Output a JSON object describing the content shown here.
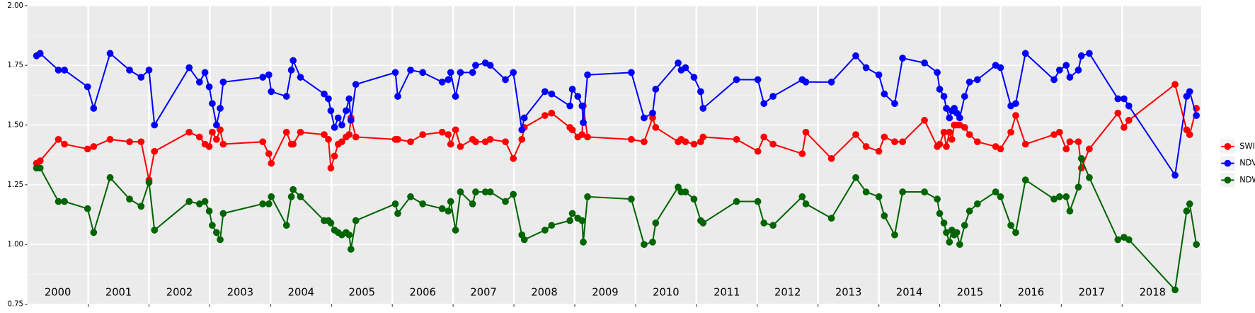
{
  "chart_data": {
    "type": "line",
    "annotations": [
      "2000",
      "2001",
      "2002",
      "2003",
      "2004",
      "2005",
      "2006",
      "2007",
      "2008",
      "2009",
      "2010",
      "2011",
      "2012",
      "2013",
      "2014",
      "2015",
      "2016",
      "2017",
      "2018"
    ],
    "x": [
      2000.15,
      2000.21,
      2000.51,
      2000.61,
      2000.99,
      2001.09,
      2001.36,
      2001.68,
      2001.87,
      2002.0,
      2002.09,
      2002.66,
      2002.83,
      2002.92,
      2002.99,
      2003.04,
      2003.11,
      2003.17,
      2003.22,
      2003.87,
      2003.97,
      2004.01,
      2004.26,
      2004.34,
      2004.37,
      2004.49,
      2004.88,
      2004.95,
      2004.99,
      2005.05,
      2005.11,
      2005.17,
      2005.24,
      2005.29,
      2005.32,
      2005.4,
      2006.05,
      2006.09,
      2006.3,
      2006.5,
      2006.82,
      2006.92,
      2006.96,
      2007.04,
      2007.12,
      2007.32,
      2007.37,
      2007.53,
      2007.61,
      2007.86,
      2007.99,
      2008.13,
      2008.17,
      2008.51,
      2008.62,
      2008.92,
      2008.96,
      2009.05,
      2009.12,
      2009.14,
      2009.21,
      2009.93,
      2010.14,
      2010.28,
      2010.33,
      2010.7,
      2010.75,
      2010.82,
      2010.96,
      2011.07,
      2011.11,
      2011.66,
      2012.01,
      2012.11,
      2012.26,
      2012.74,
      2012.8,
      2013.22,
      2013.62,
      2013.79,
      2014.0,
      2014.09,
      2014.26,
      2014.39,
      2014.75,
      2014.96,
      2015.0,
      2015.07,
      2015.11,
      2015.16,
      2015.2,
      2015.24,
      2015.28,
      2015.33,
      2015.41,
      2015.49,
      2015.62,
      2015.92,
      2016.0,
      2016.17,
      2016.25,
      2016.41,
      2016.88,
      2016.97,
      2017.08,
      2017.14,
      2017.28,
      2017.33,
      2017.46,
      2017.93,
      2018.03,
      2018.11,
      2018.87,
      2019.06,
      2019.11,
      2019.22
    ],
    "series": [
      {
        "name": "SWIR",
        "color": "#ff0000",
        "values": [
          1.34,
          1.35,
          1.44,
          1.42,
          1.4,
          1.41,
          1.44,
          1.43,
          1.43,
          1.27,
          1.39,
          1.47,
          1.45,
          1.42,
          1.41,
          1.47,
          1.44,
          1.48,
          1.42,
          1.43,
          1.38,
          1.34,
          1.47,
          1.42,
          1.42,
          1.47,
          1.46,
          1.44,
          1.32,
          1.37,
          1.42,
          1.43,
          1.45,
          1.46,
          1.53,
          1.45,
          1.44,
          1.44,
          1.43,
          1.46,
          1.47,
          1.46,
          1.42,
          1.48,
          1.41,
          1.44,
          1.43,
          1.43,
          1.44,
          1.43,
          1.36,
          1.44,
          1.49,
          1.54,
          1.55,
          1.49,
          1.48,
          1.45,
          1.46,
          1.58,
          1.45,
          1.44,
          1.43,
          1.53,
          1.49,
          1.43,
          1.44,
          1.43,
          1.42,
          1.43,
          1.45,
          1.44,
          1.39,
          1.45,
          1.42,
          1.38,
          1.47,
          1.36,
          1.46,
          1.41,
          1.39,
          1.45,
          1.43,
          1.43,
          1.52,
          1.41,
          1.42,
          1.47,
          1.41,
          1.47,
          1.44,
          1.5,
          1.5,
          1.5,
          1.49,
          1.46,
          1.43,
          1.41,
          1.4,
          1.47,
          1.54,
          1.42,
          1.46,
          1.47,
          1.4,
          1.43,
          1.43,
          1.32,
          1.4,
          1.55,
          1.49,
          1.52,
          1.67,
          1.48,
          1.46,
          1.57
        ]
      },
      {
        "name": "NDVI",
        "color": "#0000ff",
        "values": [
          1.79,
          1.8,
          1.73,
          1.73,
          1.66,
          1.57,
          1.8,
          1.73,
          1.7,
          1.73,
          1.5,
          1.74,
          1.68,
          1.72,
          1.66,
          1.59,
          1.5,
          1.57,
          1.68,
          1.7,
          1.71,
          1.64,
          1.62,
          1.73,
          1.77,
          1.7,
          1.63,
          1.61,
          1.56,
          1.49,
          1.53,
          1.5,
          1.56,
          1.61,
          1.52,
          1.67,
          1.72,
          1.62,
          1.73,
          1.72,
          1.68,
          1.69,
          1.72,
          1.62,
          1.72,
          1.72,
          1.75,
          1.76,
          1.75,
          1.69,
          1.72,
          1.48,
          1.53,
          1.64,
          1.63,
          1.58,
          1.65,
          1.62,
          1.58,
          1.51,
          1.71,
          1.72,
          1.53,
          1.55,
          1.65,
          1.76,
          1.73,
          1.74,
          1.7,
          1.64,
          1.57,
          1.69,
          1.69,
          1.59,
          1.62,
          1.69,
          1.68,
          1.68,
          1.79,
          1.74,
          1.71,
          1.63,
          1.59,
          1.78,
          1.76,
          1.72,
          1.65,
          1.62,
          1.57,
          1.53,
          1.56,
          1.57,
          1.55,
          1.53,
          1.62,
          1.68,
          1.69,
          1.75,
          1.74,
          1.58,
          1.59,
          1.8,
          1.69,
          1.73,
          1.75,
          1.7,
          1.73,
          1.79,
          1.8,
          1.61,
          1.61,
          1.58,
          1.29,
          1.62,
          1.64,
          1.54
        ]
      },
      {
        "name": "NDWI",
        "color": "#006400",
        "values": [
          1.32,
          1.32,
          1.18,
          1.18,
          1.15,
          1.05,
          1.28,
          1.19,
          1.16,
          1.26,
          1.06,
          1.18,
          1.17,
          1.18,
          1.14,
          1.08,
          1.05,
          1.02,
          1.13,
          1.17,
          1.17,
          1.2,
          1.08,
          1.2,
          1.23,
          1.2,
          1.1,
          1.1,
          1.09,
          1.06,
          1.05,
          1.04,
          1.05,
          1.04,
          0.98,
          1.1,
          1.17,
          1.13,
          1.2,
          1.17,
          1.15,
          1.14,
          1.18,
          1.06,
          1.22,
          1.17,
          1.22,
          1.22,
          1.22,
          1.18,
          1.21,
          1.04,
          1.02,
          1.06,
          1.08,
          1.1,
          1.13,
          1.11,
          1.1,
          1.01,
          1.2,
          1.19,
          1.0,
          1.01,
          1.09,
          1.24,
          1.22,
          1.22,
          1.19,
          1.1,
          1.09,
          1.18,
          1.18,
          1.09,
          1.08,
          1.2,
          1.17,
          1.11,
          1.28,
          1.22,
          1.2,
          1.12,
          1.04,
          1.22,
          1.22,
          1.19,
          1.13,
          1.09,
          1.05,
          1.01,
          1.06,
          1.04,
          1.05,
          1.0,
          1.08,
          1.14,
          1.17,
          1.22,
          1.2,
          1.08,
          1.05,
          1.27,
          1.19,
          1.2,
          1.2,
          1.14,
          1.24,
          1.36,
          1.28,
          1.02,
          1.03,
          1.02,
          0.81,
          1.14,
          1.17,
          1.0
        ]
      }
    ],
    "xlim": [
      2000,
      2019.3
    ],
    "xticks": [
      2001,
      2002,
      2003,
      2004,
      2005,
      2006,
      2007,
      2008,
      2009,
      2010,
      2011,
      2012,
      2013,
      2014,
      2015,
      2016,
      2017,
      2018
    ],
    "ylim": [
      0.75,
      2.0
    ],
    "yticks": [
      0.75,
      {
        "value": 1,
        "label": "1.00"
      },
      1.25,
      {
        "value": 1.5,
        "label": "1.50"
      },
      1.75,
      {
        "value": 2,
        "label": "2.00"
      }
    ],
    "grid": true,
    "legend": "right"
  }
}
